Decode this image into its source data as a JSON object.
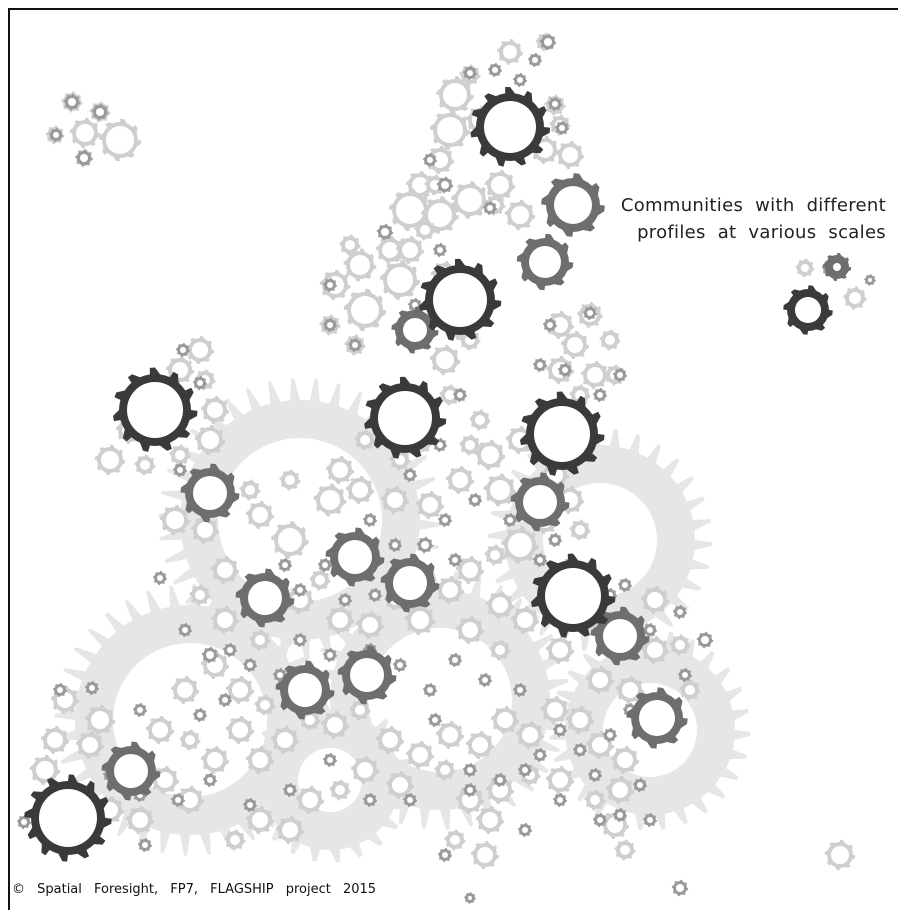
{
  "caption": {
    "line1": "Communities with different",
    "line2": "profiles at various scales"
  },
  "credit": "© Spatial Foresight, FP7, FLAGSHIP project 2015",
  "colors": {
    "background_gear": "#e6e6e6",
    "light_gear": "#cfcfcf",
    "medium_gear": "#9a9a9a",
    "dark_gear": "#6e6e6e",
    "darkest_gear": "#3a3a3a"
  }
}
